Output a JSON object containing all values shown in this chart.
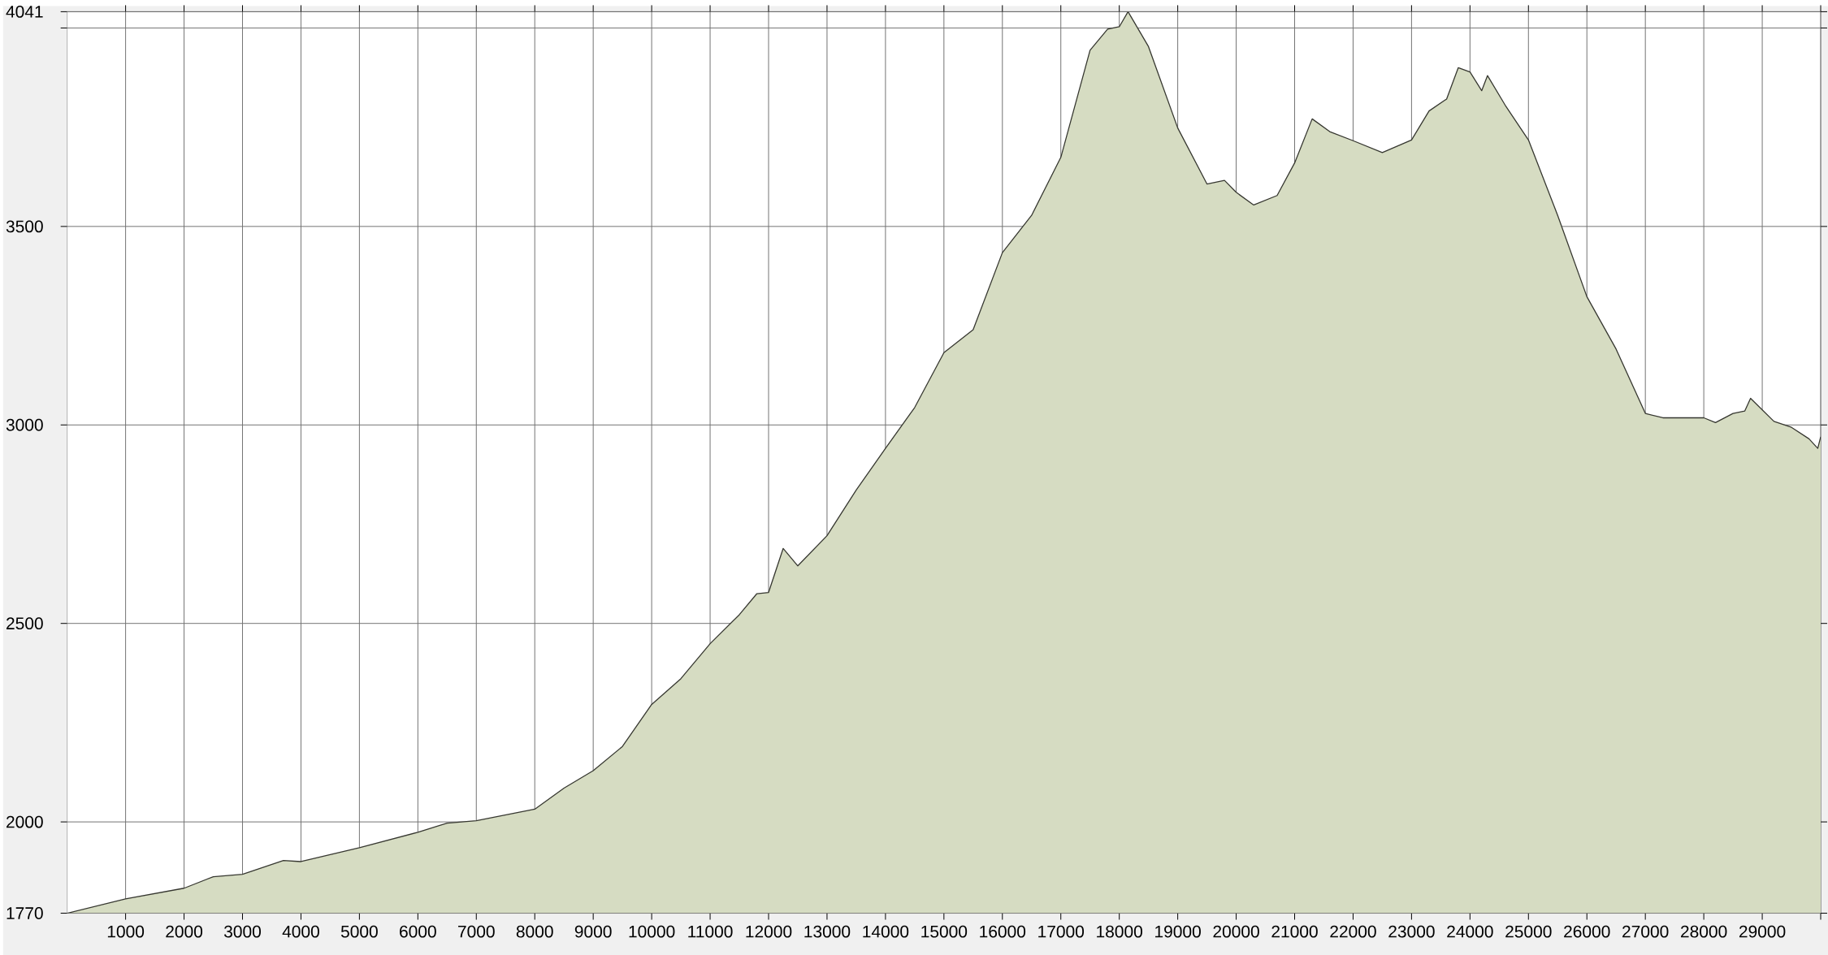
{
  "chart_data": {
    "type": "area",
    "x": [
      0,
      1000,
      2000,
      2500,
      3000,
      3700,
      4000,
      5000,
      6000,
      6500,
      7000,
      8000,
      8500,
      9000,
      9500,
      10000,
      10500,
      11000,
      11500,
      11800,
      12000,
      12250,
      12500,
      13000,
      13500,
      14000,
      14500,
      15000,
      15500,
      16000,
      16500,
      17000,
      17500,
      17800,
      18000,
      18150,
      18500,
      19000,
      19500,
      19800,
      20000,
      20300,
      20700,
      21000,
      21300,
      21600,
      22000,
      22500,
      23000,
      23300,
      23600,
      23800,
      24000,
      24200,
      24300,
      24600,
      25000,
      25500,
      26000,
      26500,
      27000,
      27300,
      28000,
      28200,
      28500,
      28700,
      28800,
      29200,
      29500,
      29800,
      29950,
      30000
    ],
    "series": [
      {
        "color": "#d6dcc2",
        "values": [
          1770,
          1806,
          1833,
          1862,
          1868,
          1903,
          1900,
          1935,
          1974,
          1997,
          2003,
          2032,
          2085,
          2129,
          2190,
          2296,
          2361,
          2449,
          2522,
          2575,
          2578,
          2689,
          2645,
          2721,
          2836,
          2941,
          3044,
          3182,
          3240,
          3434,
          3528,
          3674,
          3944,
          3997,
          4003,
          4041,
          3953,
          3748,
          3607,
          3616,
          3586,
          3554,
          3578,
          3660,
          3771,
          3739,
          3716,
          3686,
          3718,
          3791,
          3821,
          3900,
          3889,
          3842,
          3880,
          3806,
          3718,
          3528,
          3323,
          3191,
          3029,
          3018,
          3018,
          3006,
          3029,
          3035,
          3067,
          3009,
          2994,
          2965,
          2941,
          2970
        ]
      }
    ],
    "xlim": [
      0,
      30000
    ],
    "ylim": [
      1770,
      4041
    ],
    "xticks": [
      1000,
      2000,
      3000,
      4000,
      5000,
      6000,
      7000,
      8000,
      9000,
      10000,
      11000,
      12000,
      13000,
      14000,
      15000,
      16000,
      17000,
      18000,
      19000,
      20000,
      21000,
      22000,
      23000,
      24000,
      25000,
      26000,
      27000,
      28000,
      29000,
      {
        "value": 30000,
        "label": null
      }
    ],
    "yticks": [
      1770,
      2000,
      2500,
      3000,
      3500,
      {
        "value": 4000,
        "label": null
      },
      4041
    ],
    "grid": true
  }
}
